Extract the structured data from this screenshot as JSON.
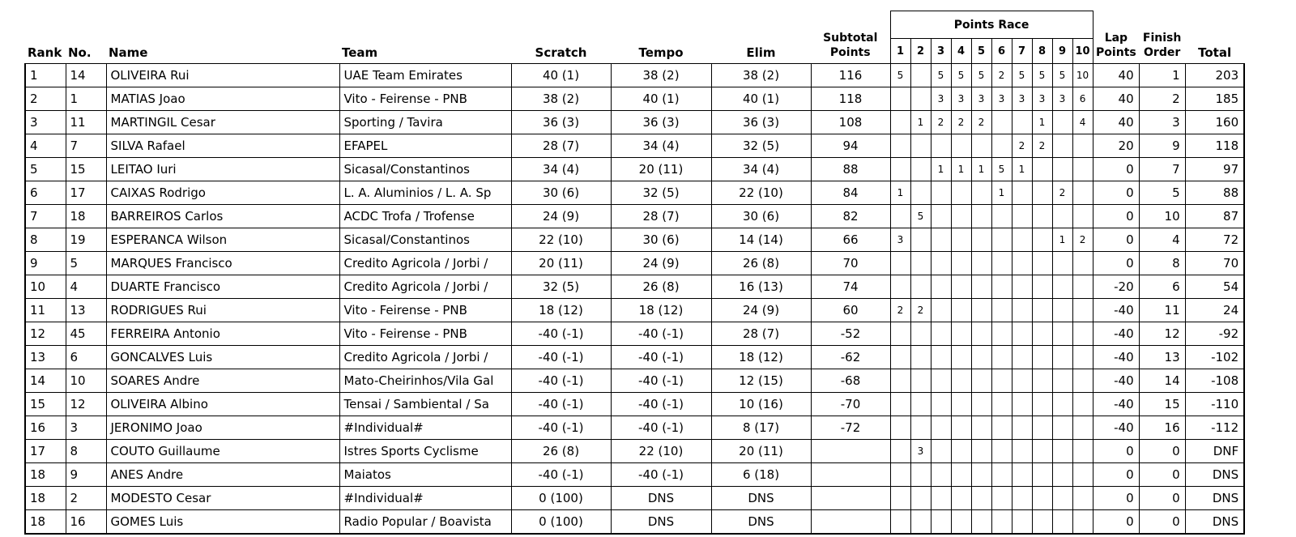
{
  "header": {
    "rank": "Rank",
    "no": "No.",
    "name": "Name",
    "team": "Team",
    "scratch": "Scratch",
    "tempo": "Tempo",
    "elim": "Elim",
    "subtotal_line1": "Subtotal",
    "subtotal_line2": "Points",
    "points_race": "Points Race",
    "sprint_numbers": [
      "1",
      "2",
      "3",
      "4",
      "5",
      "6",
      "7",
      "8",
      "9",
      "10"
    ],
    "lap_line1": "Lap",
    "lap_line2": "Points",
    "finish_line1": "Finish",
    "finish_line2": "Order",
    "total": "Total"
  },
  "rows": [
    {
      "rank": "1",
      "no": "14",
      "name": "OLIVEIRA Rui",
      "team": "UAE Team Emirates",
      "scratch": "40 (1)",
      "tempo": "38 (2)",
      "elim": "38 (2)",
      "subtotal": "116",
      "sprints": [
        "5",
        "",
        "5",
        "5",
        "5",
        "2",
        "5",
        "5",
        "5",
        "10"
      ],
      "lap": "40",
      "finish": "1",
      "total": "203"
    },
    {
      "rank": "2",
      "no": "1",
      "name": "MATIAS Joao",
      "team": "Vito - Feirense - PNB",
      "scratch": "38 (2)",
      "tempo": "40 (1)",
      "elim": "40 (1)",
      "subtotal": "118",
      "sprints": [
        "",
        "",
        "3",
        "3",
        "3",
        "3",
        "3",
        "3",
        "3",
        "6"
      ],
      "lap": "40",
      "finish": "2",
      "total": "185"
    },
    {
      "rank": "3",
      "no": "11",
      "name": "MARTINGIL Cesar",
      "team": "Sporting / Tavira",
      "scratch": "36 (3)",
      "tempo": "36 (3)",
      "elim": "36 (3)",
      "subtotal": "108",
      "sprints": [
        "",
        "1",
        "2",
        "2",
        "2",
        "",
        "",
        "1",
        "",
        "4"
      ],
      "lap": "40",
      "finish": "3",
      "total": "160"
    },
    {
      "rank": "4",
      "no": "7",
      "name": "SILVA Rafael",
      "team": "EFAPEL",
      "scratch": "28 (7)",
      "tempo": "34 (4)",
      "elim": "32 (5)",
      "subtotal": "94",
      "sprints": [
        "",
        "",
        "",
        "",
        "",
        "",
        "2",
        "2",
        "",
        ""
      ],
      "lap": "20",
      "finish": "9",
      "total": "118"
    },
    {
      "rank": "5",
      "no": "15",
      "name": "LEITAO Iuri",
      "team": "Sicasal/Constantinos",
      "scratch": "34 (4)",
      "tempo": "20 (11)",
      "elim": "34 (4)",
      "subtotal": "88",
      "sprints": [
        "",
        "",
        "1",
        "1",
        "1",
        "5",
        "1",
        "",
        "",
        ""
      ],
      "lap": "0",
      "finish": "7",
      "total": "97"
    },
    {
      "rank": "6",
      "no": "17",
      "name": "CAIXAS Rodrigo",
      "team": "L. A. Aluminios / L. A. Sp",
      "scratch": "30 (6)",
      "tempo": "32 (5)",
      "elim": "22 (10)",
      "subtotal": "84",
      "sprints": [
        "1",
        "",
        "",
        "",
        "",
        "1",
        "",
        "",
        "2",
        ""
      ],
      "lap": "0",
      "finish": "5",
      "total": "88"
    },
    {
      "rank": "7",
      "no": "18",
      "name": "BARREIROS Carlos",
      "team": "ACDC Trofa / Trofense",
      "scratch": "24 (9)",
      "tempo": "28 (7)",
      "elim": "30 (6)",
      "subtotal": "82",
      "sprints": [
        "",
        "5",
        "",
        "",
        "",
        "",
        "",
        "",
        "",
        ""
      ],
      "lap": "0",
      "finish": "10",
      "total": "87"
    },
    {
      "rank": "8",
      "no": "19",
      "name": "ESPERANCA Wilson",
      "team": "Sicasal/Constantinos",
      "scratch": "22 (10)",
      "tempo": "30 (6)",
      "elim": "14 (14)",
      "subtotal": "66",
      "sprints": [
        "3",
        "",
        "",
        "",
        "",
        "",
        "",
        "",
        "1",
        "2"
      ],
      "lap": "0",
      "finish": "4",
      "total": "72"
    },
    {
      "rank": "9",
      "no": "5",
      "name": "MARQUES Francisco",
      "team": "Credito Agricola / Jorbi /",
      "scratch": "20 (11)",
      "tempo": "24 (9)",
      "elim": "26 (8)",
      "subtotal": "70",
      "sprints": [
        "",
        "",
        "",
        "",
        "",
        "",
        "",
        "",
        "",
        ""
      ],
      "lap": "0",
      "finish": "8",
      "total": "70"
    },
    {
      "rank": "10",
      "no": "4",
      "name": "DUARTE Francisco",
      "team": "Credito Agricola / Jorbi /",
      "scratch": "32 (5)",
      "tempo": "26 (8)",
      "elim": "16 (13)",
      "subtotal": "74",
      "sprints": [
        "",
        "",
        "",
        "",
        "",
        "",
        "",
        "",
        "",
        ""
      ],
      "lap": "-20",
      "finish": "6",
      "total": "54"
    },
    {
      "rank": "11",
      "no": "13",
      "name": "RODRIGUES Rui",
      "team": "Vito - Feirense - PNB",
      "scratch": "18 (12)",
      "tempo": "18 (12)",
      "elim": "24 (9)",
      "subtotal": "60",
      "sprints": [
        "2",
        "2",
        "",
        "",
        "",
        "",
        "",
        "",
        "",
        ""
      ],
      "lap": "-40",
      "finish": "11",
      "total": "24"
    },
    {
      "rank": "12",
      "no": "45",
      "name": "FERREIRA Antonio",
      "team": "Vito - Feirense - PNB",
      "scratch": "-40 (-1)",
      "tempo": "-40 (-1)",
      "elim": "28 (7)",
      "subtotal": "-52",
      "sprints": [
        "",
        "",
        "",
        "",
        "",
        "",
        "",
        "",
        "",
        ""
      ],
      "lap": "-40",
      "finish": "12",
      "total": "-92"
    },
    {
      "rank": "13",
      "no": "6",
      "name": "GONCALVES Luis",
      "team": "Credito Agricola / Jorbi /",
      "scratch": "-40 (-1)",
      "tempo": "-40 (-1)",
      "elim": "18 (12)",
      "subtotal": "-62",
      "sprints": [
        "",
        "",
        "",
        "",
        "",
        "",
        "",
        "",
        "",
        ""
      ],
      "lap": "-40",
      "finish": "13",
      "total": "-102"
    },
    {
      "rank": "14",
      "no": "10",
      "name": "SOARES Andre",
      "team": "Mato-Cheirinhos/Vila Gal",
      "scratch": "-40 (-1)",
      "tempo": "-40 (-1)",
      "elim": "12 (15)",
      "subtotal": "-68",
      "sprints": [
        "",
        "",
        "",
        "",
        "",
        "",
        "",
        "",
        "",
        ""
      ],
      "lap": "-40",
      "finish": "14",
      "total": "-108"
    },
    {
      "rank": "15",
      "no": "12",
      "name": "OLIVEIRA Albino",
      "team": "Tensai / Sambiental / Sa",
      "scratch": "-40 (-1)",
      "tempo": "-40 (-1)",
      "elim": "10 (16)",
      "subtotal": "-70",
      "sprints": [
        "",
        "",
        "",
        "",
        "",
        "",
        "",
        "",
        "",
        ""
      ],
      "lap": "-40",
      "finish": "15",
      "total": "-110"
    },
    {
      "rank": "16",
      "no": "3",
      "name": "JERONIMO Joao",
      "team": "#Individual#",
      "scratch": "-40 (-1)",
      "tempo": "-40 (-1)",
      "elim": "8 (17)",
      "subtotal": "-72",
      "sprints": [
        "",
        "",
        "",
        "",
        "",
        "",
        "",
        "",
        "",
        ""
      ],
      "lap": "-40",
      "finish": "16",
      "total": "-112"
    },
    {
      "rank": "17",
      "no": "8",
      "name": "COUTO Guillaume",
      "team": "Istres Sports Cyclisme",
      "scratch": "26 (8)",
      "tempo": "22 (10)",
      "elim": "20 (11)",
      "subtotal": "",
      "sprints": [
        "",
        "3",
        "",
        "",
        "",
        "",
        "",
        "",
        "",
        ""
      ],
      "lap": "0",
      "finish": "0",
      "total": "DNF"
    },
    {
      "rank": "18",
      "no": "9",
      "name": "ANES Andre",
      "team": "Maiatos",
      "scratch": "-40 (-1)",
      "tempo": "-40 (-1)",
      "elim": "6 (18)",
      "subtotal": "",
      "sprints": [
        "",
        "",
        "",
        "",
        "",
        "",
        "",
        "",
        "",
        ""
      ],
      "lap": "0",
      "finish": "0",
      "total": "DNS"
    },
    {
      "rank": "18",
      "no": "2",
      "name": "MODESTO Cesar",
      "team": "#Individual#",
      "scratch": "0 (100)",
      "tempo": "DNS",
      "elim": "DNS",
      "subtotal": "",
      "sprints": [
        "",
        "",
        "",
        "",
        "",
        "",
        "",
        "",
        "",
        ""
      ],
      "lap": "0",
      "finish": "0",
      "total": "DNS"
    },
    {
      "rank": "18",
      "no": "16",
      "name": "GOMES Luis",
      "team": "Radio Popular / Boavista",
      "scratch": "0 (100)",
      "tempo": "DNS",
      "elim": "DNS",
      "subtotal": "",
      "sprints": [
        "",
        "",
        "",
        "",
        "",
        "",
        "",
        "",
        "",
        ""
      ],
      "lap": "0",
      "finish": "0",
      "total": "DNS"
    }
  ]
}
